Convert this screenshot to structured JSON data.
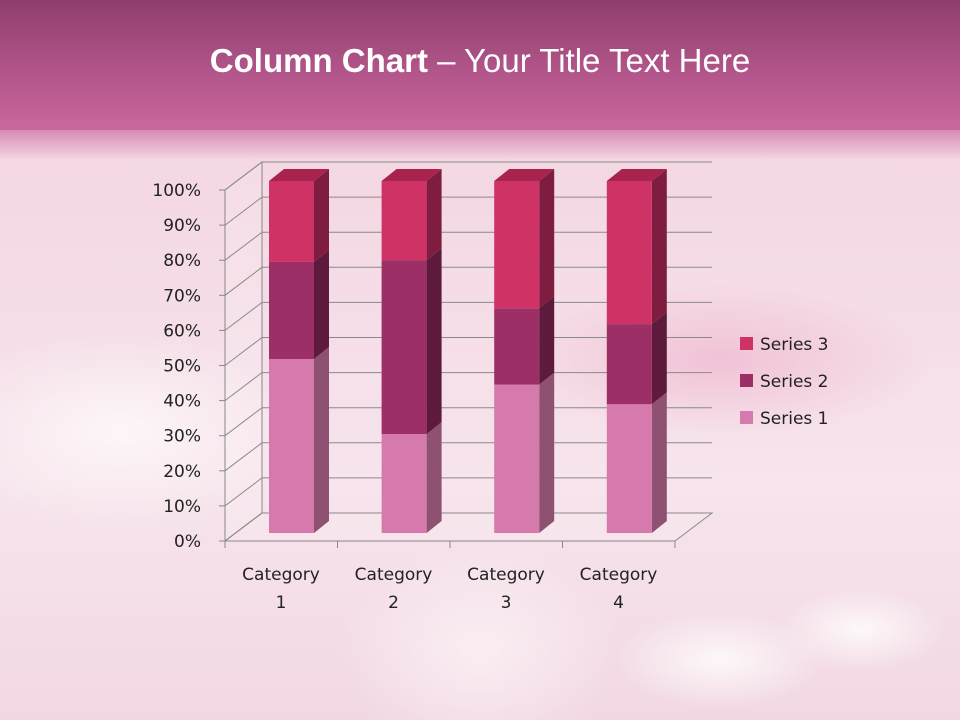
{
  "slide": {
    "title_bold": "Column Chart",
    "title_rest": " – Your Title Text Here"
  },
  "chart_data": {
    "type": "bar",
    "subtype": "3d-100%-stacked-column",
    "categories": [
      "Category 1",
      "Category 2",
      "Category 3",
      "Category 4"
    ],
    "category_lines": [
      [
        "Category",
        "1"
      ],
      [
        "Category",
        "2"
      ],
      [
        "Category",
        "3"
      ],
      [
        "Category",
        "4"
      ]
    ],
    "series": [
      {
        "name": "Series 1",
        "values": [
          4.3,
          2.5,
          3.5,
          4.5
        ],
        "color": "#d67aad",
        "side": "#8f5172",
        "top": "#e08fbd"
      },
      {
        "name": "Series 2",
        "values": [
          2.4,
          4.4,
          1.8,
          2.8
        ],
        "color": "#9b2f66",
        "side": "#5e1a3d",
        "top": "#a8406f"
      },
      {
        "name": "Series 3",
        "values": [
          2,
          2,
          3,
          5
        ],
        "color": "#cf3366",
        "side": "#7e1d3f",
        "top": "#a8244f"
      }
    ],
    "yticks": [
      "0%",
      "10%",
      "20%",
      "30%",
      "40%",
      "50%",
      "60%",
      "70%",
      "80%",
      "90%",
      "100%"
    ],
    "ylim": [
      0,
      100
    ],
    "grid": true,
    "legend": "right"
  }
}
